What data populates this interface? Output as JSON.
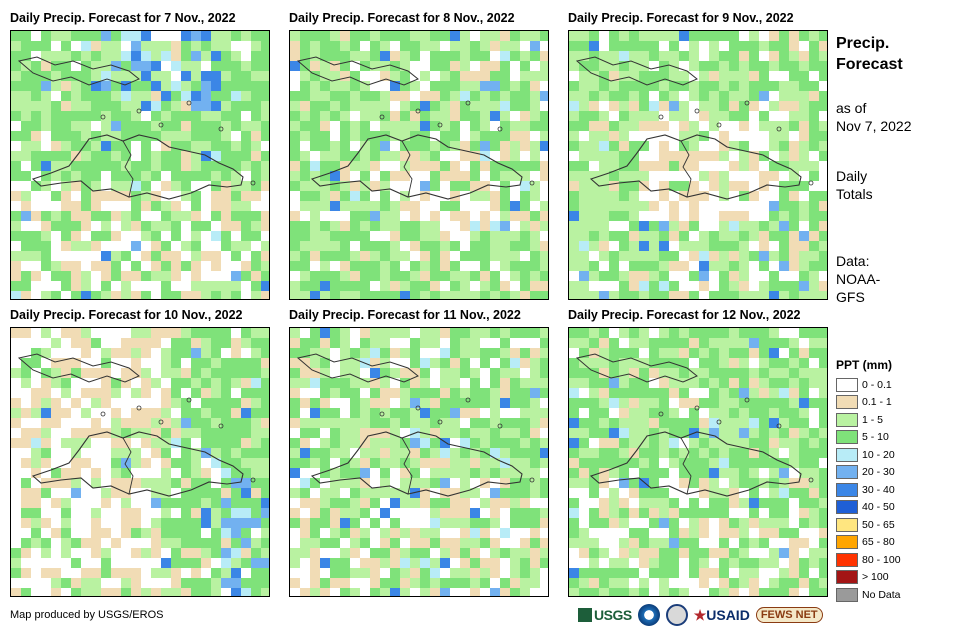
{
  "panels": [
    {
      "title": "Daily Precip. Forecast for 7 Nov., 2022",
      "day": 7
    },
    {
      "title": "Daily Precip. Forecast for 8 Nov., 2022",
      "day": 8
    },
    {
      "title": "Daily Precip. Forecast for 9 Nov., 2022",
      "day": 9
    },
    {
      "title": "Daily Precip. Forecast for 10 Nov., 2022",
      "day": 10
    },
    {
      "title": "Daily Precip. Forecast for 11 Nov., 2022",
      "day": 11
    },
    {
      "title": "Daily Precip. Forecast for 12 Nov., 2022",
      "day": 12
    }
  ],
  "side": {
    "title_line1": "Precip.",
    "title_line2": "Forecast",
    "asof_line1": "as of",
    "asof_line2": "Nov 7, 2022",
    "daily_line1": "Daily",
    "daily_line2": "Totals",
    "data_line1": "Data:",
    "data_line2": "NOAA-",
    "data_line3": "GFS"
  },
  "legend": {
    "title": "PPT (mm)",
    "items": [
      {
        "label": "0 - 0.1",
        "color": "#ffffff"
      },
      {
        "label": "0.1 - 1",
        "color": "#f1dcb5"
      },
      {
        "label": "1 - 5",
        "color": "#b9f2a1"
      },
      {
        "label": "5 - 10",
        "color": "#7fe27a"
      },
      {
        "label": "10 - 20",
        "color": "#b8ecf7"
      },
      {
        "label": "20 - 30",
        "color": "#72b1f0"
      },
      {
        "label": "30 - 40",
        "color": "#3b86e6"
      },
      {
        "label": "40 - 50",
        "color": "#1f5fd6"
      },
      {
        "label": "50 - 65",
        "color": "#ffe680"
      },
      {
        "label": "65 - 80",
        "color": "#ffa500"
      },
      {
        "label": "80 - 100",
        "color": "#ff3300"
      },
      {
        "label": "> 100",
        "color": "#a31515"
      },
      {
        "label": "No Data",
        "color": "#9a9a9a"
      }
    ]
  },
  "footer": {
    "credit": "Map produced by USGS/EROS"
  },
  "logos": {
    "usgs": "USGS",
    "usaid": "USAID",
    "fews": "FEWS NET"
  }
}
